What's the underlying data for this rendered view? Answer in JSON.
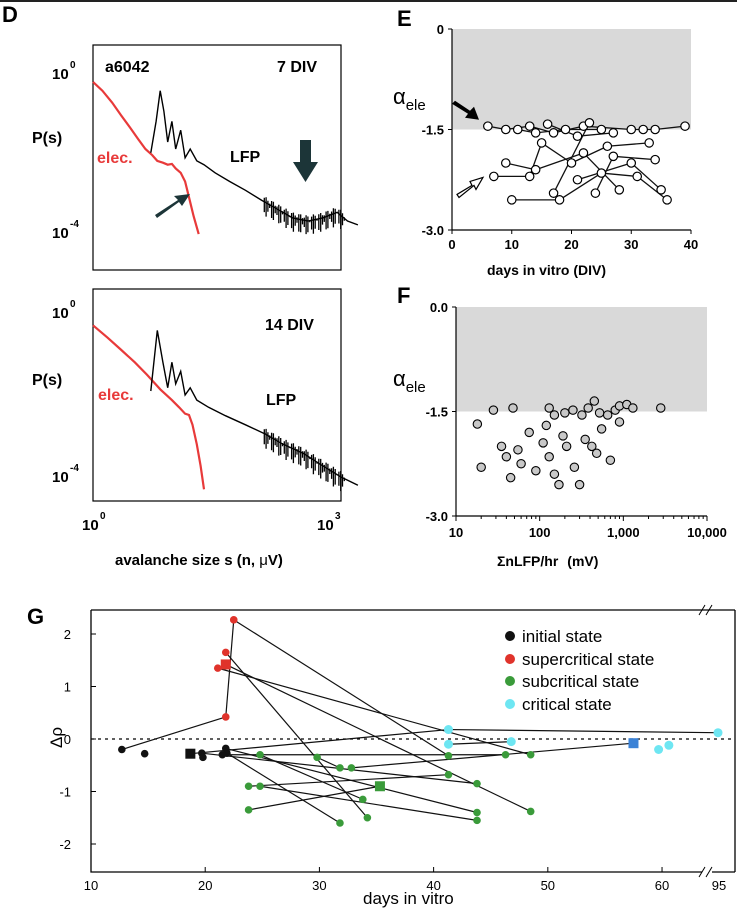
{
  "panels": {
    "d": "D",
    "e": "E",
    "f": "F",
    "g": "G"
  },
  "chart_data": [
    {
      "id": "D-top",
      "type": "line",
      "scale": "log-log",
      "culture_label": "a6042",
      "condition_label": "7 DIV",
      "ylabel": "P(s)",
      "ytick_labels": [
        {
          "base": "10",
          "exp": "0"
        },
        {
          "base": "10",
          "exp": "-4"
        }
      ],
      "series": [
        {
          "name": "elec.",
          "color": "#e83a3a",
          "x": [
            1.0,
            1.3,
            1.7,
            2.2,
            2.8,
            3.5,
            4.3,
            5.2,
            6.0,
            7.0,
            8.0,
            9.0,
            10.0,
            11.5,
            13.0,
            14.5,
            16.5,
            19.0
          ],
          "y": [
            0.5,
            0.3,
            0.15,
            0.07,
            0.035,
            0.018,
            0.01,
            0.007,
            0.005,
            0.0045,
            0.004,
            0.0042,
            0.0032,
            0.0025,
            0.0015,
            0.0006,
            0.0002,
            7e-05
          ]
        },
        {
          "name": "LFP",
          "color": "#000000",
          "x": [
            5.0,
            5.8,
            6.5,
            7.2,
            8.0,
            9.0,
            10.0,
            11.5,
            13.0,
            15.0,
            18.0,
            22.0,
            30.0,
            45.0,
            70.0,
            110.0,
            170.0,
            260.0,
            400.0,
            600.0,
            900.0,
            1200.0,
            1600.0
          ],
          "y": [
            0.008,
            0.05,
            0.3,
            0.09,
            0.015,
            0.05,
            0.01,
            0.03,
            0.006,
            0.01,
            0.005,
            0.004,
            0.0025,
            0.0015,
            0.0009,
            0.0005,
            0.0003,
            0.00018,
            0.00015,
            0.00018,
            0.00025,
            0.00015,
            0.00012
          ]
        }
      ],
      "annotations": [
        "arrow to elec. shoulder",
        "arrow to LFP bump"
      ]
    },
    {
      "id": "D-bottom",
      "type": "line",
      "scale": "log-log",
      "condition_label": "14 DIV",
      "ylabel": "P(s)",
      "xlabel_main": "avalanche size s (n, ",
      "xlabel_mu": "μ",
      "xlabel_end": "V)",
      "ytick_labels": [
        {
          "base": "10",
          "exp": "0"
        },
        {
          "base": "10",
          "exp": "-4"
        }
      ],
      "xtick_labels": [
        {
          "base": "10",
          "exp": "0"
        },
        {
          "base": "10",
          "exp": "3"
        }
      ],
      "series": [
        {
          "name": "elec.",
          "color": "#e83a3a",
          "x": [
            1.0,
            1.5,
            2.2,
            3.2,
            4.5,
            6.5,
            9.0,
            11.0,
            13.0,
            14.5,
            16.0,
            18.0,
            20.0,
            22.0
          ],
          "y": [
            0.4,
            0.2,
            0.1,
            0.05,
            0.025,
            0.011,
            0.006,
            0.004,
            0.0028,
            0.0026,
            0.0015,
            0.0005,
            0.00015,
            4e-05
          ]
        },
        {
          "name": "LFP",
          "color": "#000000",
          "x": [
            5.0,
            6.0,
            7.0,
            8.0,
            9.0,
            10.0,
            11.5,
            13.0,
            15.0,
            18.0,
            25.0,
            40.0,
            70.0,
            120.0,
            200.0,
            350.0,
            600.0,
            1000.0,
            1600.0
          ],
          "y": [
            0.01,
            0.3,
            0.05,
            0.012,
            0.05,
            0.015,
            0.03,
            0.008,
            0.012,
            0.006,
            0.004,
            0.0025,
            0.0015,
            0.0009,
            0.0005,
            0.0003,
            0.00015,
            8e-05,
            5e-05
          ]
        }
      ]
    },
    {
      "id": "E",
      "type": "scatter",
      "xlabel": "days in vitro (DIV)",
      "ylabel_main": "α",
      "ylabel_sub": "ele",
      "xlim": [
        0,
        40
      ],
      "ylim": [
        -3.0,
        0
      ],
      "xtick_labels": [
        "0",
        "10",
        "20",
        "30",
        "40"
      ],
      "ytick_labels": [
        "0",
        "-1.5",
        "-3.0"
      ],
      "shaded_above": -1.5,
      "points": [
        {
          "x": 6,
          "y": -1.45
        },
        {
          "x": 9,
          "y": -1.5
        },
        {
          "x": 11,
          "y": -1.5
        },
        {
          "x": 13,
          "y": -1.45
        },
        {
          "x": 14,
          "y": -1.55
        },
        {
          "x": 16,
          "y": -1.42
        },
        {
          "x": 17,
          "y": -1.55
        },
        {
          "x": 19,
          "y": -1.5
        },
        {
          "x": 21,
          "y": -1.6
        },
        {
          "x": 22,
          "y": -1.45
        },
        {
          "x": 23,
          "y": -1.4
        },
        {
          "x": 25,
          "y": -1.5
        },
        {
          "x": 27,
          "y": -1.55
        },
        {
          "x": 30,
          "y": -1.5
        },
        {
          "x": 32,
          "y": -1.5
        },
        {
          "x": 34,
          "y": -1.5
        },
        {
          "x": 39,
          "y": -1.45
        },
        {
          "x": 7,
          "y": -2.2
        },
        {
          "x": 9,
          "y": -2.0
        },
        {
          "x": 10,
          "y": -2.55
        },
        {
          "x": 13,
          "y": -2.2
        },
        {
          "x": 14,
          "y": -2.1
        },
        {
          "x": 17,
          "y": -2.45
        },
        {
          "x": 18,
          "y": -2.55
        },
        {
          "x": 20,
          "y": -2.0
        },
        {
          "x": 21,
          "y": -2.25
        },
        {
          "x": 22,
          "y": -1.85
        },
        {
          "x": 24,
          "y": -2.45
        },
        {
          "x": 25,
          "y": -2.15
        },
        {
          "x": 27,
          "y": -1.9
        },
        {
          "x": 28,
          "y": -2.4
        },
        {
          "x": 30,
          "y": -2.0
        },
        {
          "x": 31,
          "y": -2.2
        },
        {
          "x": 33,
          "y": -1.7
        },
        {
          "x": 34,
          "y": -1.95
        },
        {
          "x": 35,
          "y": -2.4
        },
        {
          "x": 36,
          "y": -2.55
        },
        {
          "x": 15,
          "y": -1.7
        },
        {
          "x": 26,
          "y": -1.75
        }
      ],
      "links": [
        [
          6,
          -1.45,
          9,
          -1.5
        ],
        [
          9,
          -1.5,
          13,
          -1.45
        ],
        [
          13,
          -1.45,
          17,
          -1.55
        ],
        [
          17,
          -1.55,
          22,
          -1.45
        ],
        [
          22,
          -1.45,
          30,
          -1.5
        ],
        [
          30,
          -1.5,
          34,
          -1.5
        ],
        [
          34,
          -1.5,
          39,
          -1.45
        ],
        [
          11,
          -1.5,
          14,
          -1.55
        ],
        [
          14,
          -1.55,
          19,
          -1.5
        ],
        [
          19,
          -1.5,
          25,
          -1.5
        ],
        [
          16,
          -1.42,
          21,
          -1.6
        ],
        [
          21,
          -1.6,
          27,
          -1.55
        ],
        [
          7,
          -2.2,
          13,
          -2.2
        ],
        [
          13,
          -2.2,
          15,
          -1.7
        ],
        [
          15,
          -1.7,
          20,
          -2.0
        ],
        [
          9,
          -2.0,
          14,
          -2.1
        ],
        [
          14,
          -2.1,
          22,
          -1.85
        ],
        [
          22,
          -1.85,
          28,
          -2.4
        ],
        [
          10,
          -2.55,
          18,
          -2.55
        ],
        [
          18,
          -2.55,
          25,
          -2.15
        ],
        [
          25,
          -2.15,
          31,
          -2.2
        ],
        [
          31,
          -2.2,
          36,
          -2.55
        ],
        [
          17,
          -2.45,
          23,
          -1.4
        ],
        [
          20,
          -2.0,
          26,
          -1.75
        ],
        [
          26,
          -1.75,
          33,
          -1.7
        ],
        [
          24,
          -2.45,
          27,
          -1.9
        ],
        [
          27,
          -1.9,
          34,
          -1.95
        ],
        [
          21,
          -2.25,
          30,
          -2.0
        ],
        [
          30,
          -2.0,
          35,
          -2.4
        ]
      ],
      "arrows": [
        {
          "kind": "filled",
          "at_y": -1.4
        },
        {
          "kind": "open",
          "at_y": -2.35
        }
      ]
    },
    {
      "id": "F",
      "type": "scatter",
      "xscale": "log",
      "xlabel_main": "ΣnLFP/hr",
      "xlabel_unit": "(mV)",
      "ylabel_main": "α",
      "ylabel_sub": "ele",
      "xlim": [
        10,
        10000
      ],
      "ylim": [
        -3.0,
        0
      ],
      "xtick_labels": [
        "10",
        "100",
        "1,000",
        "10,000"
      ],
      "ytick_labels": [
        "0.0",
        "-1.5",
        "-3.0"
      ],
      "shaded_above": -1.5,
      "points": [
        {
          "x": 28,
          "y": -1.48
        },
        {
          "x": 48,
          "y": -1.45
        },
        {
          "x": 130,
          "y": -1.45
        },
        {
          "x": 150,
          "y": -1.55
        },
        {
          "x": 200,
          "y": -1.52
        },
        {
          "x": 250,
          "y": -1.48
        },
        {
          "x": 320,
          "y": -1.55
        },
        {
          "x": 380,
          "y": -1.45
        },
        {
          "x": 450,
          "y": -1.35
        },
        {
          "x": 520,
          "y": -1.52
        },
        {
          "x": 650,
          "y": -1.55
        },
        {
          "x": 800,
          "y": -1.48
        },
        {
          "x": 900,
          "y": -1.42
        },
        {
          "x": 1100,
          "y": -1.4
        },
        {
          "x": 1300,
          "y": -1.45
        },
        {
          "x": 2800,
          "y": -1.45
        },
        {
          "x": 18,
          "y": -1.68
        },
        {
          "x": 20,
          "y": -2.3
        },
        {
          "x": 35,
          "y": -2.0
        },
        {
          "x": 40,
          "y": -2.15
        },
        {
          "x": 45,
          "y": -2.45
        },
        {
          "x": 55,
          "y": -2.05
        },
        {
          "x": 60,
          "y": -2.25
        },
        {
          "x": 75,
          "y": -1.8
        },
        {
          "x": 90,
          "y": -2.35
        },
        {
          "x": 110,
          "y": -1.95
        },
        {
          "x": 130,
          "y": -2.15
        },
        {
          "x": 150,
          "y": -2.4
        },
        {
          "x": 170,
          "y": -2.55
        },
        {
          "x": 190,
          "y": -1.85
        },
        {
          "x": 210,
          "y": -2.0
        },
        {
          "x": 260,
          "y": -2.3
        },
        {
          "x": 300,
          "y": -2.55
        },
        {
          "x": 350,
          "y": -1.9
        },
        {
          "x": 420,
          "y": -2.0
        },
        {
          "x": 480,
          "y": -2.1
        },
        {
          "x": 550,
          "y": -1.75
        },
        {
          "x": 700,
          "y": -2.2
        },
        {
          "x": 900,
          "y": -1.65
        },
        {
          "x": 120,
          "y": -1.7
        }
      ]
    },
    {
      "id": "G",
      "type": "scatter",
      "xlabel": "days in vitro",
      "ylabel": "Δρ",
      "xlim": [
        10,
        62
      ],
      "ylim": [
        -2.5,
        2.5
      ],
      "xtick_labels": [
        "10",
        "20",
        "30",
        "40",
        "50",
        "60",
        "95"
      ],
      "ytick_labels": [
        "2",
        "1",
        "0",
        "-1",
        "-2"
      ],
      "legend": [
        {
          "name": "initial state",
          "color": "#111111"
        },
        {
          "name": "supercritical state",
          "color": "#e0332b"
        },
        {
          "name": "subcritical state",
          "color": "#3a9b3a"
        },
        {
          "name": "critical state",
          "color": "#6ee6f2"
        }
      ],
      "points": [
        {
          "x": 12.7,
          "y": -0.2,
          "state": "initial"
        },
        {
          "x": 14.7,
          "y": -0.28,
          "state": "initial"
        },
        {
          "x": 18.7,
          "y": -0.28,
          "state": "initial",
          "marker": "square"
        },
        {
          "x": 19.7,
          "y": -0.27,
          "state": "initial"
        },
        {
          "x": 19.8,
          "y": -0.35,
          "state": "initial"
        },
        {
          "x": 21.8,
          "y": -0.18,
          "state": "initial"
        },
        {
          "x": 21.9,
          "y": -0.27,
          "state": "initial"
        },
        {
          "x": 21.5,
          "y": -0.3,
          "state": "initial"
        },
        {
          "x": 22.5,
          "y": 2.27,
          "state": "supercritical"
        },
        {
          "x": 21.8,
          "y": 1.65,
          "state": "supercritical"
        },
        {
          "x": 21.8,
          "y": 1.42,
          "state": "supercritical",
          "marker": "square"
        },
        {
          "x": 21.1,
          "y": 1.35,
          "state": "supercritical"
        },
        {
          "x": 21.8,
          "y": 0.42,
          "state": "supercritical"
        },
        {
          "x": 24.8,
          "y": -0.3,
          "state": "subcritical"
        },
        {
          "x": 23.8,
          "y": -0.9,
          "state": "subcritical"
        },
        {
          "x": 24.8,
          "y": -0.9,
          "state": "subcritical"
        },
        {
          "x": 23.8,
          "y": -1.35,
          "state": "subcritical"
        },
        {
          "x": 29.8,
          "y": -0.35,
          "state": "subcritical"
        },
        {
          "x": 31.8,
          "y": -0.55,
          "state": "subcritical"
        },
        {
          "x": 32.8,
          "y": -0.55,
          "state": "subcritical"
        },
        {
          "x": 31.8,
          "y": -1.6,
          "state": "subcritical"
        },
        {
          "x": 33.8,
          "y": -1.15,
          "state": "subcritical"
        },
        {
          "x": 35.3,
          "y": -0.9,
          "state": "subcritical",
          "marker": "square"
        },
        {
          "x": 34.2,
          "y": -1.5,
          "state": "subcritical"
        },
        {
          "x": 41.3,
          "y": -0.32,
          "state": "subcritical"
        },
        {
          "x": 41.3,
          "y": -0.68,
          "state": "subcritical"
        },
        {
          "x": 43.8,
          "y": -0.85,
          "state": "subcritical"
        },
        {
          "x": 43.8,
          "y": -1.4,
          "state": "subcritical"
        },
        {
          "x": 43.8,
          "y": -1.55,
          "state": "subcritical"
        },
        {
          "x": 46.3,
          "y": -0.3,
          "state": "subcritical"
        },
        {
          "x": 48.5,
          "y": -0.3,
          "state": "subcritical"
        },
        {
          "x": 48.5,
          "y": -1.38,
          "state": "subcritical"
        },
        {
          "x": 41.3,
          "y": 0.18,
          "state": "critical"
        },
        {
          "x": 41.3,
          "y": -0.1,
          "state": "critical"
        },
        {
          "x": 46.8,
          "y": -0.05,
          "state": "critical"
        },
        {
          "x": 57.5,
          "y": -0.08,
          "state": "critical",
          "marker": "square"
        },
        {
          "x": 59.7,
          "y": -0.2,
          "state": "critical"
        },
        {
          "x": 60.6,
          "y": -0.12,
          "state": "critical"
        },
        {
          "x": 61.6,
          "y": 0.12,
          "state": "critical",
          "break_after": true
        }
      ]
    }
  ]
}
